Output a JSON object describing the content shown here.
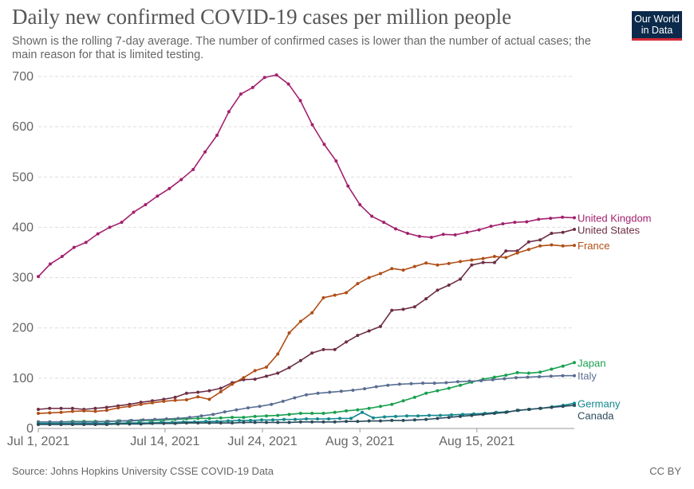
{
  "header": {
    "title": "Daily new confirmed COVID-19 cases per million people",
    "subtitle": "Shown is the rolling 7-day average. The number of confirmed cases is lower than the number of actual cases; the main reason for that is limited testing.",
    "logo_line1": "Our World",
    "logo_line2": "in Data"
  },
  "footer": {
    "source": "Source: Johns Hopkins University CSSE COVID-19 Data",
    "license": "CC BY"
  },
  "colors": {
    "United Kingdom": "#a2206e",
    "United States": "#6d2e46",
    "France": "#b04e16",
    "Japan": "#19a050",
    "Italy": "#5a6e92",
    "Germany": "#12878d",
    "Canada": "#2b4b5a"
  },
  "chart_data": {
    "type": "line",
    "title": "Daily new confirmed COVID-19 cases per million people",
    "xlabel": "",
    "ylabel": "",
    "ylim": [
      0,
      700
    ],
    "yticks": [
      0,
      100,
      200,
      300,
      400,
      500,
      600,
      700
    ],
    "xlim": [
      0,
      55
    ],
    "xticks": [
      {
        "label": "Jul 1, 2021",
        "day": 0
      },
      {
        "label": "Jul 14, 2021",
        "day": 13
      },
      {
        "label": "Jul 24, 2021",
        "day": 23
      },
      {
        "label": "Aug 3, 2021",
        "day": 33
      },
      {
        "label": "Aug 15, 2021",
        "day": 45
      }
    ],
    "grid": true,
    "legend": "right-end labels",
    "series": [
      {
        "name": "United Kingdom",
        "values": [
          302,
          327,
          342,
          360,
          370,
          387,
          400,
          410,
          430,
          445,
          462,
          477,
          495,
          515,
          550,
          583,
          630,
          665,
          678,
          698,
          703,
          685,
          652,
          604,
          565,
          532,
          482,
          445,
          422,
          410,
          397,
          388,
          382,
          380,
          386,
          385,
          390,
          395,
          402,
          407,
          410,
          411,
          416,
          418,
          420,
          419
        ]
      },
      {
        "name": "United States",
        "values": [
          38,
          40,
          40,
          40,
          38,
          40,
          42,
          45,
          48,
          52,
          55,
          58,
          62,
          70,
          72,
          75,
          80,
          91,
          97,
          98,
          104,
          110,
          121,
          135,
          150,
          157,
          157,
          172,
          185,
          194,
          203,
          235,
          237,
          242,
          258,
          275,
          285,
          297,
          325,
          330,
          330,
          353,
          353,
          371,
          375,
          388,
          390,
          396
        ]
      },
      {
        "name": "France",
        "values": [
          30,
          31,
          32,
          34,
          35,
          34,
          36,
          41,
          44,
          48,
          51,
          54,
          56,
          57,
          63,
          58,
          73,
          88,
          101,
          115,
          122,
          148,
          190,
          213,
          230,
          260,
          265,
          270,
          288,
          300,
          308,
          318,
          315,
          322,
          329,
          325,
          328,
          332,
          335,
          338,
          342,
          340,
          349,
          356,
          363,
          365,
          363,
          364
        ]
      },
      {
        "name": "Japan",
        "values": [
          13,
          13,
          13,
          14,
          14,
          14,
          14,
          15,
          15,
          16,
          16,
          17,
          18,
          19,
          20,
          20,
          21,
          22,
          22,
          24,
          25,
          26,
          28,
          30,
          30,
          30,
          32,
          35,
          37,
          40,
          44,
          48,
          55,
          62,
          70,
          75,
          80,
          86,
          92,
          98,
          102,
          106,
          111,
          110,
          112,
          118,
          124,
          131
        ]
      },
      {
        "name": "Italy",
        "values": [
          13,
          13,
          13,
          13,
          13,
          13,
          14,
          15,
          16,
          17,
          18,
          19,
          20,
          22,
          25,
          28,
          33,
          37,
          41,
          44,
          48,
          54,
          61,
          67,
          70,
          72,
          74,
          76,
          79,
          83,
          86,
          88,
          89,
          90,
          90,
          91,
          93,
          94,
          95,
          97,
          99,
          101,
          102,
          103,
          104,
          105,
          105
        ]
      },
      {
        "name": "Germany",
        "values": [
          10,
          10,
          10,
          10,
          10,
          10,
          10,
          10,
          11,
          11,
          11,
          12,
          12,
          13,
          13,
          14,
          14,
          15,
          16,
          16,
          17,
          17,
          18,
          18,
          19,
          19,
          19,
          20,
          20,
          32,
          21,
          23,
          24,
          25,
          25,
          26,
          26,
          27,
          28,
          29,
          30,
          32,
          33,
          36,
          38,
          40,
          43,
          46,
          50
        ]
      },
      {
        "name": "Canada",
        "values": [
          8,
          8,
          8,
          8,
          8,
          8,
          8,
          9,
          9,
          9,
          10,
          10,
          10,
          11,
          11,
          11,
          11,
          11,
          12,
          12,
          12,
          12,
          12,
          13,
          13,
          13,
          13,
          14,
          14,
          15,
          15,
          16,
          16,
          17,
          18,
          20,
          22,
          24,
          26,
          28,
          30,
          32,
          36,
          38,
          40,
          42,
          44,
          46
        ]
      }
    ]
  }
}
